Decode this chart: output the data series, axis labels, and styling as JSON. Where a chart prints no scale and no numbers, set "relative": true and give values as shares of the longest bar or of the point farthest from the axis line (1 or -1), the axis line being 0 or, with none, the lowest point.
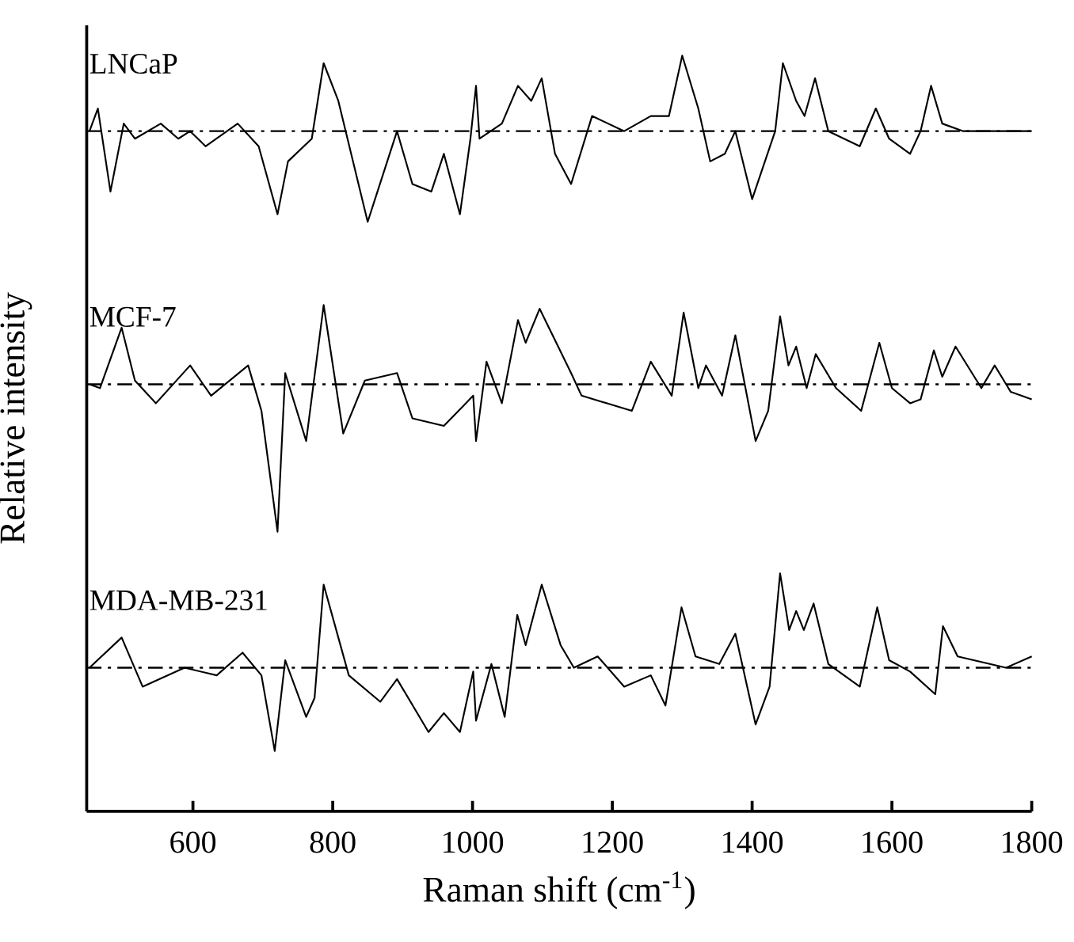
{
  "chart_data": {
    "type": "line",
    "relative": true,
    "xlabel": "Raman shift (cm$^{-1}$)",
    "ylabel": "Relative intensity",
    "xlim": [
      448,
      1800
    ],
    "xticks": [
      600,
      800,
      1000,
      1200,
      1400,
      1600,
      1800
    ],
    "tick_labels": "x",
    "series": [
      {
        "name": "LNCaP",
        "color": "#000000",
        "x": [
          452,
          464,
          482,
          501,
          517,
          554,
          579,
          596,
          618,
          664,
          694,
          721,
          736,
          770,
          787,
          808,
          850,
          892,
          914,
          941,
          959,
          982,
          997,
          1005,
          1010,
          1042,
          1065,
          1084,
          1099,
          1118,
          1141,
          1171,
          1217,
          1255,
          1281,
          1300,
          1323,
          1340,
          1361,
          1376,
          1400,
          1433,
          1444,
          1463,
          1475,
          1490,
          1509,
          1554,
          1577,
          1596,
          1626,
          1641,
          1656,
          1672,
          1702,
          1763,
          1800
        ],
        "values": [
          0.9,
          0.93,
          0.82,
          0.91,
          0.89,
          0.91,
          0.89,
          0.9,
          0.88,
          0.91,
          0.88,
          0.79,
          0.86,
          0.89,
          0.99,
          0.94,
          0.78,
          0.9,
          0.83,
          0.82,
          0.87,
          0.79,
          0.89,
          0.96,
          0.89,
          0.91,
          0.96,
          0.94,
          0.97,
          0.87,
          0.83,
          0.92,
          0.9,
          0.92,
          0.92,
          1.0,
          0.93,
          0.86,
          0.87,
          0.9,
          0.81,
          0.9,
          0.99,
          0.94,
          0.92,
          0.97,
          0.9,
          0.88,
          0.93,
          0.89,
          0.87,
          0.9,
          0.96,
          0.91,
          0.9,
          0.9,
          0.9
        ]
      },
      {
        "name": "MCF-7",
        "color": "#000000",
        "x": [
          452,
          467,
          498,
          517,
          547,
          596,
          626,
          679,
          698,
          721,
          732,
          762,
          787,
          815,
          846,
          892,
          914,
          959,
          1001,
          1005,
          1020,
          1042,
          1065,
          1076,
          1096,
          1141,
          1156,
          1228,
          1255,
          1285,
          1302,
          1323,
          1334,
          1357,
          1376,
          1405,
          1423,
          1440,
          1452,
          1463,
          1478,
          1491,
          1520,
          1556,
          1582,
          1600,
          1626,
          1641,
          1660,
          1672,
          1691,
          1728,
          1747,
          1770,
          1800
        ],
        "values": [
          0.565,
          0.56,
          0.64,
          0.57,
          0.54,
          0.59,
          0.55,
          0.59,
          0.53,
          0.37,
          0.58,
          0.49,
          0.67,
          0.5,
          0.57,
          0.58,
          0.52,
          0.51,
          0.55,
          0.49,
          0.595,
          0.54,
          0.65,
          0.62,
          0.665,
          0.58,
          0.55,
          0.53,
          0.595,
          0.55,
          0.66,
          0.56,
          0.59,
          0.55,
          0.63,
          0.49,
          0.53,
          0.655,
          0.59,
          0.615,
          0.56,
          0.605,
          0.56,
          0.53,
          0.62,
          0.56,
          0.54,
          0.545,
          0.61,
          0.575,
          0.615,
          0.56,
          0.59,
          0.555,
          0.545
        ]
      },
      {
        "name": "MDA-MB-231",
        "color": "#000000",
        "x": [
          452,
          498,
          528,
          588,
          634,
          671,
          698,
          717,
          732,
          762,
          774,
          787,
          823,
          868,
          892,
          937,
          959,
          982,
          1001,
          1005,
          1027,
          1046,
          1064,
          1076,
          1099,
          1126,
          1145,
          1179,
          1217,
          1255,
          1276,
          1299,
          1319,
          1353,
          1376,
          1405,
          1425,
          1440,
          1453,
          1463,
          1474,
          1488,
          1509,
          1554,
          1579,
          1596,
          1626,
          1662,
          1673,
          1694,
          1763,
          1800
        ],
        "values": [
          0.19,
          0.23,
          0.165,
          0.19,
          0.18,
          0.21,
          0.18,
          0.08,
          0.2,
          0.125,
          0.15,
          0.3,
          0.18,
          0.145,
          0.175,
          0.105,
          0.13,
          0.105,
          0.185,
          0.12,
          0.195,
          0.125,
          0.26,
          0.22,
          0.3,
          0.22,
          0.19,
          0.205,
          0.165,
          0.18,
          0.14,
          0.27,
          0.205,
          0.195,
          0.235,
          0.115,
          0.165,
          0.315,
          0.24,
          0.265,
          0.24,
          0.275,
          0.195,
          0.165,
          0.27,
          0.2,
          0.185,
          0.155,
          0.245,
          0.205,
          0.19,
          0.205
        ]
      }
    ],
    "ref_lines": [
      {
        "axis": "y",
        "value": 0.9,
        "line_style": "dashdot",
        "color": "#000000"
      },
      {
        "axis": "y",
        "value": 0.565,
        "line_style": "dashdot",
        "color": "#000000"
      },
      {
        "axis": "y",
        "value": 0.19,
        "line_style": "dashdot",
        "color": "#000000"
      }
    ]
  }
}
